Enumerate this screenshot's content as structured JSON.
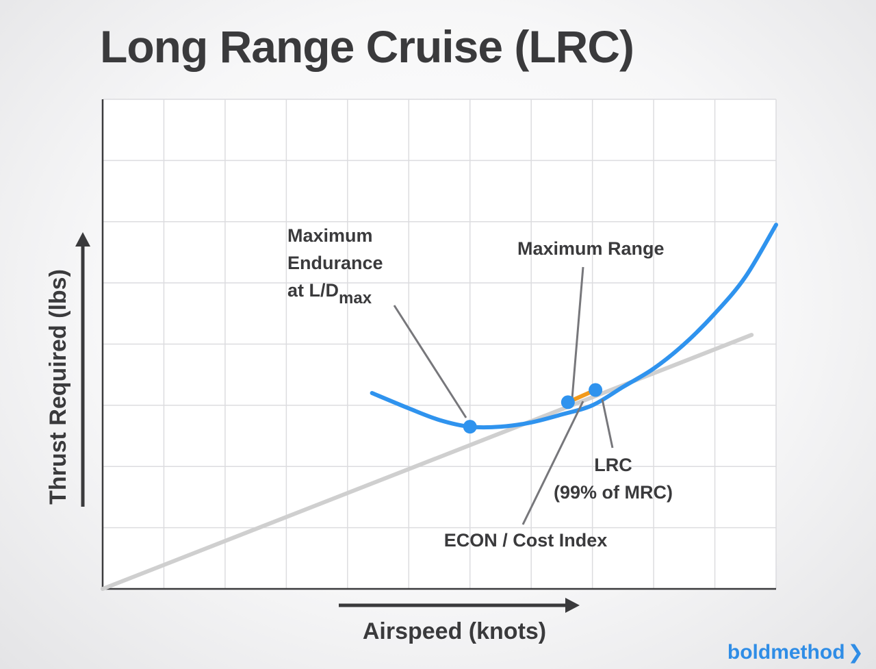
{
  "title": "Long Range Cruise (LRC)",
  "brand": {
    "name": "boldmethod",
    "chevron": "❯"
  },
  "colors": {
    "curve": "#2f93ee",
    "lrc_segment": "#f29a1b",
    "tangent": "#cfcfcf",
    "text": "#3a3a3c",
    "brand": "#2f8de6"
  },
  "chart_data": {
    "type": "line",
    "xlabel": "Airspeed (knots)",
    "ylabel": "Thrust Required (lbs)",
    "grid": true,
    "xlim": [
      0,
      11
    ],
    "ylim": [
      0,
      8
    ],
    "series": [
      {
        "values_x": [
          4.4,
          5.0,
          5.5,
          6.0,
          6.5,
          7.0,
          7.5,
          8.0,
          8.5,
          9.0,
          9.5,
          10.0,
          10.5,
          11.0
        ],
        "values_y": [
          3.2,
          2.95,
          2.76,
          2.65,
          2.65,
          2.72,
          2.85,
          3.0,
          3.3,
          3.6,
          4.0,
          4.5,
          5.1,
          5.95
        ]
      },
      {
        "values_x": [
          0,
          10.6
        ],
        "values_y": [
          0,
          4.15
        ]
      }
    ],
    "points": [
      {
        "x": 6.0,
        "y": 2.65
      },
      {
        "x": 7.6,
        "y": 3.05
      },
      {
        "x": 8.05,
        "y": 3.25
      }
    ],
    "annotations": {
      "max_endurance": {
        "line1": "Maximum",
        "line2": "Endurance",
        "line3": "at L/D",
        "sub": "max"
      },
      "max_range": "Maximum Range",
      "lrc": {
        "line1": "LRC",
        "line2": "(99% of MRC)"
      },
      "econ": "ECON / Cost Index"
    }
  }
}
